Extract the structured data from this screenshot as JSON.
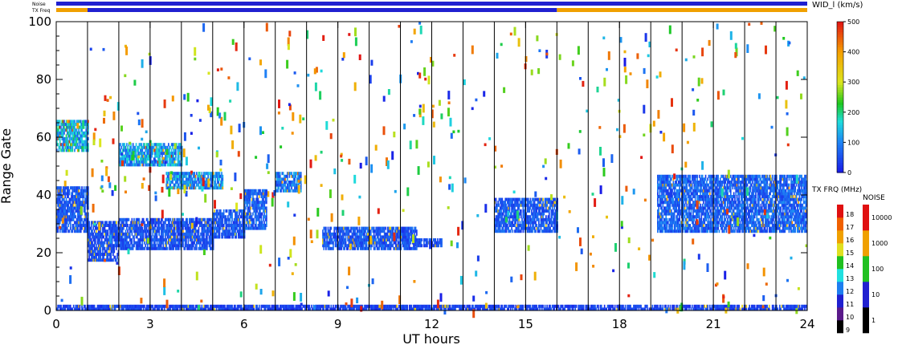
{
  "chart_data": {
    "type": "heatmap",
    "x_label": "UT hours",
    "y_label": "Range Gate",
    "x_range": [
      0,
      24
    ],
    "y_range": [
      0,
      100
    ],
    "x_ticks": [
      0,
      3,
      6,
      9,
      12,
      15,
      18,
      21,
      24
    ],
    "y_ticks": [
      0,
      20,
      40,
      60,
      80,
      100
    ],
    "scan_boundaries_ut": [
      1,
      2,
      3,
      4,
      5,
      6,
      7,
      8,
      9,
      10,
      11,
      12,
      13,
      14,
      15,
      16,
      17,
      18,
      19,
      20,
      21,
      22,
      23
    ],
    "top_bars": {
      "noise_label": "Noise",
      "txfreq_label": "TX Freq",
      "noise_segments": [
        {
          "from": 0,
          "to": 24,
          "level": "10"
        }
      ],
      "txfreq_segments": [
        {
          "from": 0,
          "to": 1,
          "freq_mhz": 14
        },
        {
          "from": 1,
          "to": 16,
          "freq_mhz": 11
        },
        {
          "from": 16,
          "to": 24,
          "freq_mhz": 14
        }
      ]
    },
    "colorbar_width": {
      "title": "WID_l (km/s)",
      "range": [
        0,
        500
      ],
      "ticks": [
        0,
        100,
        200,
        300,
        400,
        500
      ]
    },
    "colorbar_txfreq": {
      "title": "TX FRQ (MHz)",
      "ticks": [
        9,
        10,
        11,
        12,
        13,
        14,
        15,
        16,
        17,
        18
      ],
      "colors": [
        "#000000",
        "#5a1a8a",
        "#2020d0",
        "#1e7ef0",
        "#20e0e0",
        "#20c020",
        "#e0e020",
        "#f0a000",
        "#f06000",
        "#e01010"
      ]
    },
    "colorbar_noise": {
      "title": "NOISE",
      "ticks": [
        1,
        10,
        100,
        1000,
        10000
      ],
      "colors": [
        "#000000",
        "#2020d0",
        "#20c020",
        "#f0a000",
        "#e01010"
      ]
    },
    "bands": [
      {
        "t0": 0.0,
        "t1": 1.0,
        "g0": 27,
        "g1": 43,
        "w": 60
      },
      {
        "t0": 1.0,
        "t1": 2.0,
        "g0": 17,
        "g1": 31,
        "w": 50
      },
      {
        "t0": 2.0,
        "t1": 5.0,
        "g0": 21,
        "g1": 32,
        "w": 55
      },
      {
        "t0": 5.0,
        "t1": 6.0,
        "g0": 25,
        "g1": 35,
        "w": 60
      },
      {
        "t0": 6.0,
        "t1": 6.7,
        "g0": 28,
        "g1": 42,
        "w": 70
      },
      {
        "t0": 8.5,
        "t1": 11.5,
        "g0": 21,
        "g1": 29,
        "w": 60
      },
      {
        "t0": 11.5,
        "t1": 12.3,
        "g0": 22,
        "g1": 25,
        "w": 50
      },
      {
        "t0": 14.0,
        "t1": 16.0,
        "g0": 27,
        "g1": 39,
        "w": 60
      },
      {
        "t0": 19.2,
        "t1": 24.0,
        "g0": 27,
        "g1": 47,
        "w": 70
      },
      {
        "t0": 0.0,
        "t1": 1.0,
        "g0": 55,
        "g1": 66,
        "w": 140
      },
      {
        "t0": 2.0,
        "t1": 4.0,
        "g0": 50,
        "g1": 58,
        "w": 120
      },
      {
        "t0": 3.5,
        "t1": 5.3,
        "g0": 42,
        "g1": 48,
        "w": 110
      },
      {
        "t0": 7.0,
        "t1": 7.8,
        "g0": 41,
        "g1": 48,
        "w": 90
      },
      {
        "t0": 0.0,
        "t1": 24.0,
        "g0": 0,
        "g1": 2,
        "w": 40
      }
    ]
  }
}
